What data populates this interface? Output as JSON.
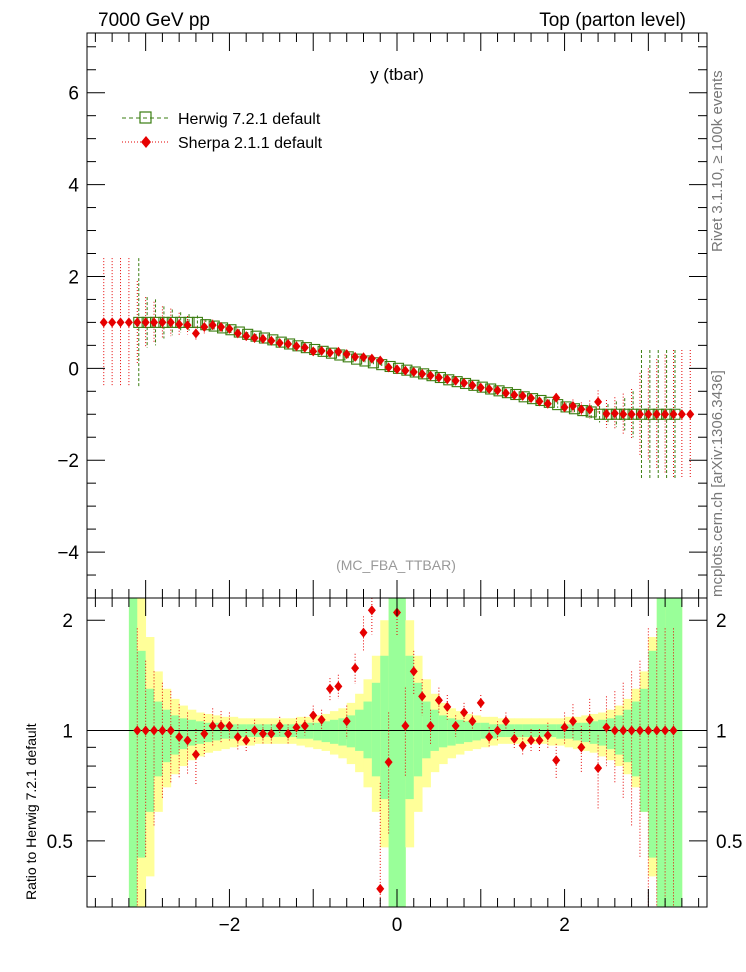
{
  "header": {
    "left": "7000 GeV pp",
    "right": "Top (parton level)"
  },
  "side": {
    "upper": "Rivet 3.1.10, ≥ 100k events",
    "lower": "mcplots.cern.ch [arXiv:1306.3436]"
  },
  "watermark": "(MC_FBA_TTBAR)",
  "colors": {
    "herwig": "#3a7d10",
    "sherpa": "#e60000",
    "band_inner": "#99ff99",
    "band_outer": "#ffff99"
  },
  "chart_data": [
    {
      "type": "scatter",
      "title": "y (tbar)",
      "xlim": [
        -3.7,
        3.7
      ],
      "ylim": [
        -5.0,
        7.3
      ],
      "yticks": [
        -4,
        -2,
        0,
        2,
        4,
        6
      ],
      "ytick_labels": [
        "−4",
        "−2",
        "0",
        "2",
        "4",
        "6"
      ],
      "legend_position": "top-left",
      "series": [
        {
          "name": "Herwig 7.2.1 default",
          "x": [
            -3.1,
            -3.0,
            -2.9,
            -2.8,
            -2.7,
            -2.6,
            -2.5,
            -2.4,
            -2.3,
            -2.2,
            -2.1,
            -2.0,
            -1.9,
            -1.8,
            -1.7,
            -1.6,
            -1.5,
            -1.4,
            -1.3,
            -1.2,
            -1.1,
            -1.0,
            -0.9,
            -0.8,
            -0.7,
            -0.6,
            -0.5,
            -0.4,
            -0.3,
            -0.2,
            -0.1,
            0.0,
            0.1,
            0.2,
            0.3,
            0.4,
            0.5,
            0.6,
            0.7,
            0.8,
            0.9,
            1.0,
            1.1,
            1.2,
            1.3,
            1.4,
            1.5,
            1.6,
            1.7,
            1.8,
            1.9,
            2.0,
            2.1,
            2.2,
            2.3,
            2.4,
            2.5,
            2.6,
            2.7,
            2.8,
            2.9,
            3.0,
            3.1,
            3.2,
            3.3
          ],
          "y": [
            1.0,
            1.0,
            1.0,
            1.0,
            1.0,
            1.0,
            1.0,
            1.0,
            0.95,
            0.92,
            0.88,
            0.84,
            0.79,
            0.74,
            0.7,
            0.66,
            0.62,
            0.57,
            0.53,
            0.49,
            0.45,
            0.41,
            0.37,
            0.33,
            0.29,
            0.25,
            0.2,
            0.16,
            0.12,
            0.08,
            0.04,
            0.0,
            -0.04,
            -0.08,
            -0.12,
            -0.16,
            -0.2,
            -0.25,
            -0.29,
            -0.33,
            -0.37,
            -0.41,
            -0.45,
            -0.49,
            -0.53,
            -0.57,
            -0.62,
            -0.66,
            -0.7,
            -0.74,
            -0.79,
            -0.84,
            -0.88,
            -0.92,
            -0.95,
            -1.0,
            -1.0,
            -1.0,
            -1.0,
            -1.0,
            -1.0,
            -1.0,
            -1.0,
            -1.0,
            -1.0
          ],
          "err": [
            1.4,
            0.55,
            0.5,
            0.35,
            0.28,
            0.22,
            0.18,
            0.15,
            0.12,
            0.1,
            0.08,
            0.07,
            0.06,
            0.05,
            0.05,
            0.04,
            0.04,
            0.04,
            0.03,
            0.03,
            0.03,
            0.03,
            0.03,
            0.03,
            0.03,
            0.03,
            0.03,
            0.03,
            0.03,
            0.03,
            0.03,
            0.03,
            0.03,
            0.03,
            0.03,
            0.03,
            0.03,
            0.03,
            0.03,
            0.03,
            0.03,
            0.03,
            0.03,
            0.03,
            0.04,
            0.04,
            0.04,
            0.05,
            0.05,
            0.06,
            0.07,
            0.08,
            0.1,
            0.12,
            0.15,
            0.18,
            0.22,
            0.28,
            0.35,
            0.5,
            1.4,
            1.4,
            1.4,
            1.4,
            1.4
          ]
        },
        {
          "name": "Sherpa 2.1.1 default",
          "x": [
            -3.5,
            -3.4,
            -3.3,
            -3.2,
            -3.1,
            -3.0,
            -2.9,
            -2.8,
            -2.7,
            -2.6,
            -2.5,
            -2.4,
            -2.3,
            -2.2,
            -2.1,
            -2.0,
            -1.9,
            -1.8,
            -1.7,
            -1.6,
            -1.5,
            -1.4,
            -1.3,
            -1.2,
            -1.1,
            -1.0,
            -0.9,
            -0.8,
            -0.7,
            -0.6,
            -0.5,
            -0.4,
            -0.3,
            -0.2,
            -0.1,
            0.0,
            0.1,
            0.2,
            0.3,
            0.4,
            0.5,
            0.6,
            0.7,
            0.8,
            0.9,
            1.0,
            1.1,
            1.2,
            1.3,
            1.4,
            1.5,
            1.6,
            1.7,
            1.8,
            1.9,
            2.0,
            2.1,
            2.2,
            2.3,
            2.4,
            2.5,
            2.6,
            2.7,
            2.8,
            2.9,
            3.0,
            3.1,
            3.2,
            3.3,
            3.4,
            3.5
          ],
          "y": [
            1.0,
            1.0,
            1.0,
            1.0,
            1.0,
            1.0,
            1.0,
            1.0,
            1.0,
            0.96,
            0.94,
            0.76,
            0.9,
            0.94,
            0.9,
            0.86,
            0.76,
            0.7,
            0.66,
            0.64,
            0.6,
            0.55,
            0.53,
            0.48,
            0.45,
            0.37,
            0.38,
            0.34,
            0.36,
            0.31,
            0.25,
            0.24,
            0.21,
            0.17,
            0.02,
            -0.02,
            -0.05,
            -0.08,
            -0.12,
            -0.16,
            -0.2,
            -0.24,
            -0.27,
            -0.32,
            -0.37,
            -0.42,
            -0.45,
            -0.48,
            -0.54,
            -0.58,
            -0.6,
            -0.65,
            -0.72,
            -0.77,
            -0.64,
            -0.85,
            -0.82,
            -0.89,
            -0.9,
            -0.73,
            -0.99,
            -0.98,
            -1.0,
            -1.0,
            -1.0,
            -1.0,
            -1.0,
            -1.0,
            -1.0,
            -1.0,
            -1.0
          ],
          "err": [
            1.4,
            1.4,
            1.4,
            1.4,
            0.9,
            0.55,
            0.45,
            0.35,
            0.3,
            0.25,
            0.2,
            0.15,
            0.14,
            0.12,
            0.1,
            0.08,
            0.07,
            0.06,
            0.06,
            0.05,
            0.05,
            0.04,
            0.04,
            0.04,
            0.04,
            0.04,
            0.04,
            0.04,
            0.04,
            0.04,
            0.04,
            0.04,
            0.04,
            0.04,
            0.04,
            0.04,
            0.04,
            0.04,
            0.04,
            0.04,
            0.04,
            0.04,
            0.04,
            0.04,
            0.04,
            0.04,
            0.04,
            0.04,
            0.05,
            0.05,
            0.06,
            0.06,
            0.07,
            0.08,
            0.1,
            0.12,
            0.14,
            0.15,
            0.2,
            0.25,
            0.3,
            0.35,
            0.45,
            0.55,
            0.9,
            1.0,
            1.2,
            1.3,
            1.4,
            1.4,
            1.4
          ]
        }
      ]
    },
    {
      "type": "scatter",
      "ylabel": "Ratio to Herwig 7.2.1 default",
      "xlim": [
        -3.7,
        3.7
      ],
      "ylim": [
        0.33,
        2.3
      ],
      "xticks": [
        -2,
        0,
        2
      ],
      "xtick_labels": [
        "−2",
        "0",
        "2"
      ],
      "yticks": [
        0.5,
        1,
        2
      ],
      "ytick_labels": [
        "0.5",
        "1",
        "2"
      ],
      "reference_line": 1,
      "band": {
        "x_edges": [
          -3.2,
          -3.1,
          -3.0,
          -2.9,
          -2.8,
          -2.7,
          -2.6,
          -2.5,
          -2.4,
          -2.3,
          -2.2,
          -2.1,
          -2.0,
          -1.9,
          -1.8,
          -1.7,
          -1.6,
          -1.5,
          -1.4,
          -1.3,
          -1.2,
          -1.1,
          -1.0,
          -0.9,
          -0.8,
          -0.7,
          -0.6,
          -0.5,
          -0.4,
          -0.3,
          -0.2,
          -0.1,
          0.0,
          0.1,
          0.2,
          0.3,
          0.4,
          0.5,
          0.6,
          0.7,
          0.8,
          0.9,
          1.0,
          1.1,
          1.2,
          1.3,
          1.4,
          1.5,
          1.6,
          1.7,
          1.8,
          1.9,
          2.0,
          2.1,
          2.2,
          2.3,
          2.4,
          2.5,
          2.6,
          2.7,
          2.8,
          2.9,
          3.0,
          3.1,
          3.2,
          3.3,
          3.4
        ],
        "inner_lo": [
          0.33,
          0.45,
          0.6,
          0.75,
          0.82,
          0.86,
          0.89,
          0.91,
          0.92,
          0.93,
          0.94,
          0.95,
          0.95,
          0.96,
          0.96,
          0.96,
          0.96,
          0.96,
          0.96,
          0.96,
          0.95,
          0.95,
          0.94,
          0.93,
          0.92,
          0.91,
          0.9,
          0.88,
          0.84,
          0.75,
          0.65,
          0.33,
          0.33,
          0.65,
          0.75,
          0.84,
          0.88,
          0.9,
          0.91,
          0.92,
          0.93,
          0.94,
          0.95,
          0.95,
          0.96,
          0.96,
          0.96,
          0.96,
          0.96,
          0.96,
          0.96,
          0.95,
          0.95,
          0.94,
          0.93,
          0.92,
          0.91,
          0.89,
          0.86,
          0.82,
          0.75,
          0.6,
          0.45,
          0.33,
          0.33,
          0.33
        ],
        "inner_hi": [
          2.3,
          1.65,
          1.3,
          1.2,
          1.14,
          1.1,
          1.08,
          1.07,
          1.06,
          1.05,
          1.05,
          1.04,
          1.04,
          1.04,
          1.04,
          1.04,
          1.04,
          1.04,
          1.04,
          1.04,
          1.04,
          1.05,
          1.05,
          1.06,
          1.07,
          1.08,
          1.1,
          1.14,
          1.2,
          1.35,
          1.6,
          2.3,
          2.3,
          1.6,
          1.35,
          1.2,
          1.14,
          1.1,
          1.08,
          1.07,
          1.06,
          1.05,
          1.05,
          1.04,
          1.04,
          1.04,
          1.04,
          1.04,
          1.04,
          1.04,
          1.04,
          1.04,
          1.04,
          1.05,
          1.05,
          1.06,
          1.07,
          1.08,
          1.1,
          1.14,
          1.2,
          1.3,
          1.65,
          2.3,
          2.3,
          2.3
        ],
        "outer_lo": [
          0.33,
          0.33,
          0.4,
          0.6,
          0.7,
          0.76,
          0.8,
          0.83,
          0.85,
          0.87,
          0.88,
          0.89,
          0.9,
          0.91,
          0.91,
          0.92,
          0.92,
          0.92,
          0.92,
          0.92,
          0.91,
          0.9,
          0.89,
          0.88,
          0.86,
          0.84,
          0.81,
          0.77,
          0.7,
          0.6,
          0.48,
          0.33,
          0.33,
          0.48,
          0.6,
          0.7,
          0.77,
          0.81,
          0.84,
          0.86,
          0.88,
          0.89,
          0.9,
          0.91,
          0.92,
          0.92,
          0.92,
          0.92,
          0.92,
          0.92,
          0.91,
          0.91,
          0.9,
          0.89,
          0.88,
          0.87,
          0.85,
          0.83,
          0.8,
          0.76,
          0.7,
          0.6,
          0.4,
          0.33,
          0.33,
          0.33
        ],
        "outer_hi": [
          2.3,
          2.3,
          1.8,
          1.45,
          1.3,
          1.22,
          1.17,
          1.14,
          1.12,
          1.11,
          1.1,
          1.09,
          1.09,
          1.08,
          1.08,
          1.08,
          1.08,
          1.08,
          1.08,
          1.08,
          1.09,
          1.09,
          1.1,
          1.11,
          1.13,
          1.15,
          1.19,
          1.26,
          1.38,
          1.6,
          2.0,
          2.3,
          2.3,
          2.0,
          1.6,
          1.38,
          1.26,
          1.19,
          1.15,
          1.13,
          1.11,
          1.1,
          1.09,
          1.09,
          1.08,
          1.08,
          1.08,
          1.08,
          1.08,
          1.08,
          1.08,
          1.08,
          1.09,
          1.09,
          1.1,
          1.11,
          1.12,
          1.14,
          1.17,
          1.22,
          1.3,
          1.45,
          1.8,
          2.3,
          2.3,
          2.3
        ]
      },
      "series": [
        {
          "name": "Sherpa 2.1.1 default / Herwig 7.2.1 default",
          "x": [
            -3.1,
            -3.0,
            -2.9,
            -2.8,
            -2.7,
            -2.6,
            -2.5,
            -2.4,
            -2.3,
            -2.2,
            -2.1,
            -2.0,
            -1.9,
            -1.8,
            -1.7,
            -1.6,
            -1.5,
            -1.4,
            -1.3,
            -1.2,
            -1.1,
            -1.0,
            -0.9,
            -0.8,
            -0.7,
            -0.6,
            -0.5,
            -0.4,
            -0.3,
            -0.2,
            -0.1,
            0.0,
            0.1,
            0.2,
            0.3,
            0.4,
            0.5,
            0.6,
            0.7,
            0.8,
            0.9,
            1.0,
            1.1,
            1.2,
            1.3,
            1.4,
            1.5,
            1.6,
            1.7,
            1.8,
            1.9,
            2.0,
            2.1,
            2.2,
            2.3,
            2.4,
            2.5,
            2.6,
            2.7,
            2.8,
            2.9,
            3.0,
            3.1,
            3.2,
            3.3
          ],
          "y": [
            1.0,
            1.0,
            1.0,
            1.0,
            1.0,
            0.96,
            0.94,
            0.86,
            0.98,
            1.03,
            1.03,
            1.03,
            0.96,
            0.94,
            1.0,
            0.98,
            0.98,
            1.03,
            0.98,
            1.02,
            1.03,
            1.1,
            1.07,
            1.3,
            1.32,
            1.06,
            1.48,
            1.85,
            2.13,
            0.37,
            0.82,
            2.1,
            1.03,
            1.45,
            1.24,
            1.03,
            1.21,
            1.16,
            1.03,
            1.12,
            1.06,
            1.19,
            0.96,
            1.0,
            1.06,
            0.95,
            0.91,
            0.94,
            0.94,
            0.97,
            0.83,
            1.02,
            1.06,
            0.9,
            1.07,
            0.79,
            1.02,
            1.0,
            1.0,
            1.0,
            1.0,
            1.0,
            1.0,
            1.0,
            1.0
          ],
          "err": [
            0.9,
            0.55,
            0.45,
            0.35,
            0.28,
            0.22,
            0.18,
            0.15,
            0.13,
            0.12,
            0.1,
            0.09,
            0.08,
            0.07,
            0.07,
            0.06,
            0.06,
            0.06,
            0.06,
            0.06,
            0.06,
            0.07,
            0.07,
            0.09,
            0.1,
            0.11,
            0.14,
            0.2,
            0.3,
            0.35,
            0.3,
            0.3,
            0.28,
            0.2,
            0.14,
            0.11,
            0.1,
            0.09,
            0.07,
            0.07,
            0.06,
            0.06,
            0.06,
            0.06,
            0.06,
            0.06,
            0.06,
            0.07,
            0.07,
            0.08,
            0.09,
            0.1,
            0.12,
            0.13,
            0.15,
            0.18,
            0.22,
            0.28,
            0.35,
            0.45,
            0.55,
            0.9,
            0.9,
            0.9,
            0.9
          ]
        }
      ]
    }
  ]
}
